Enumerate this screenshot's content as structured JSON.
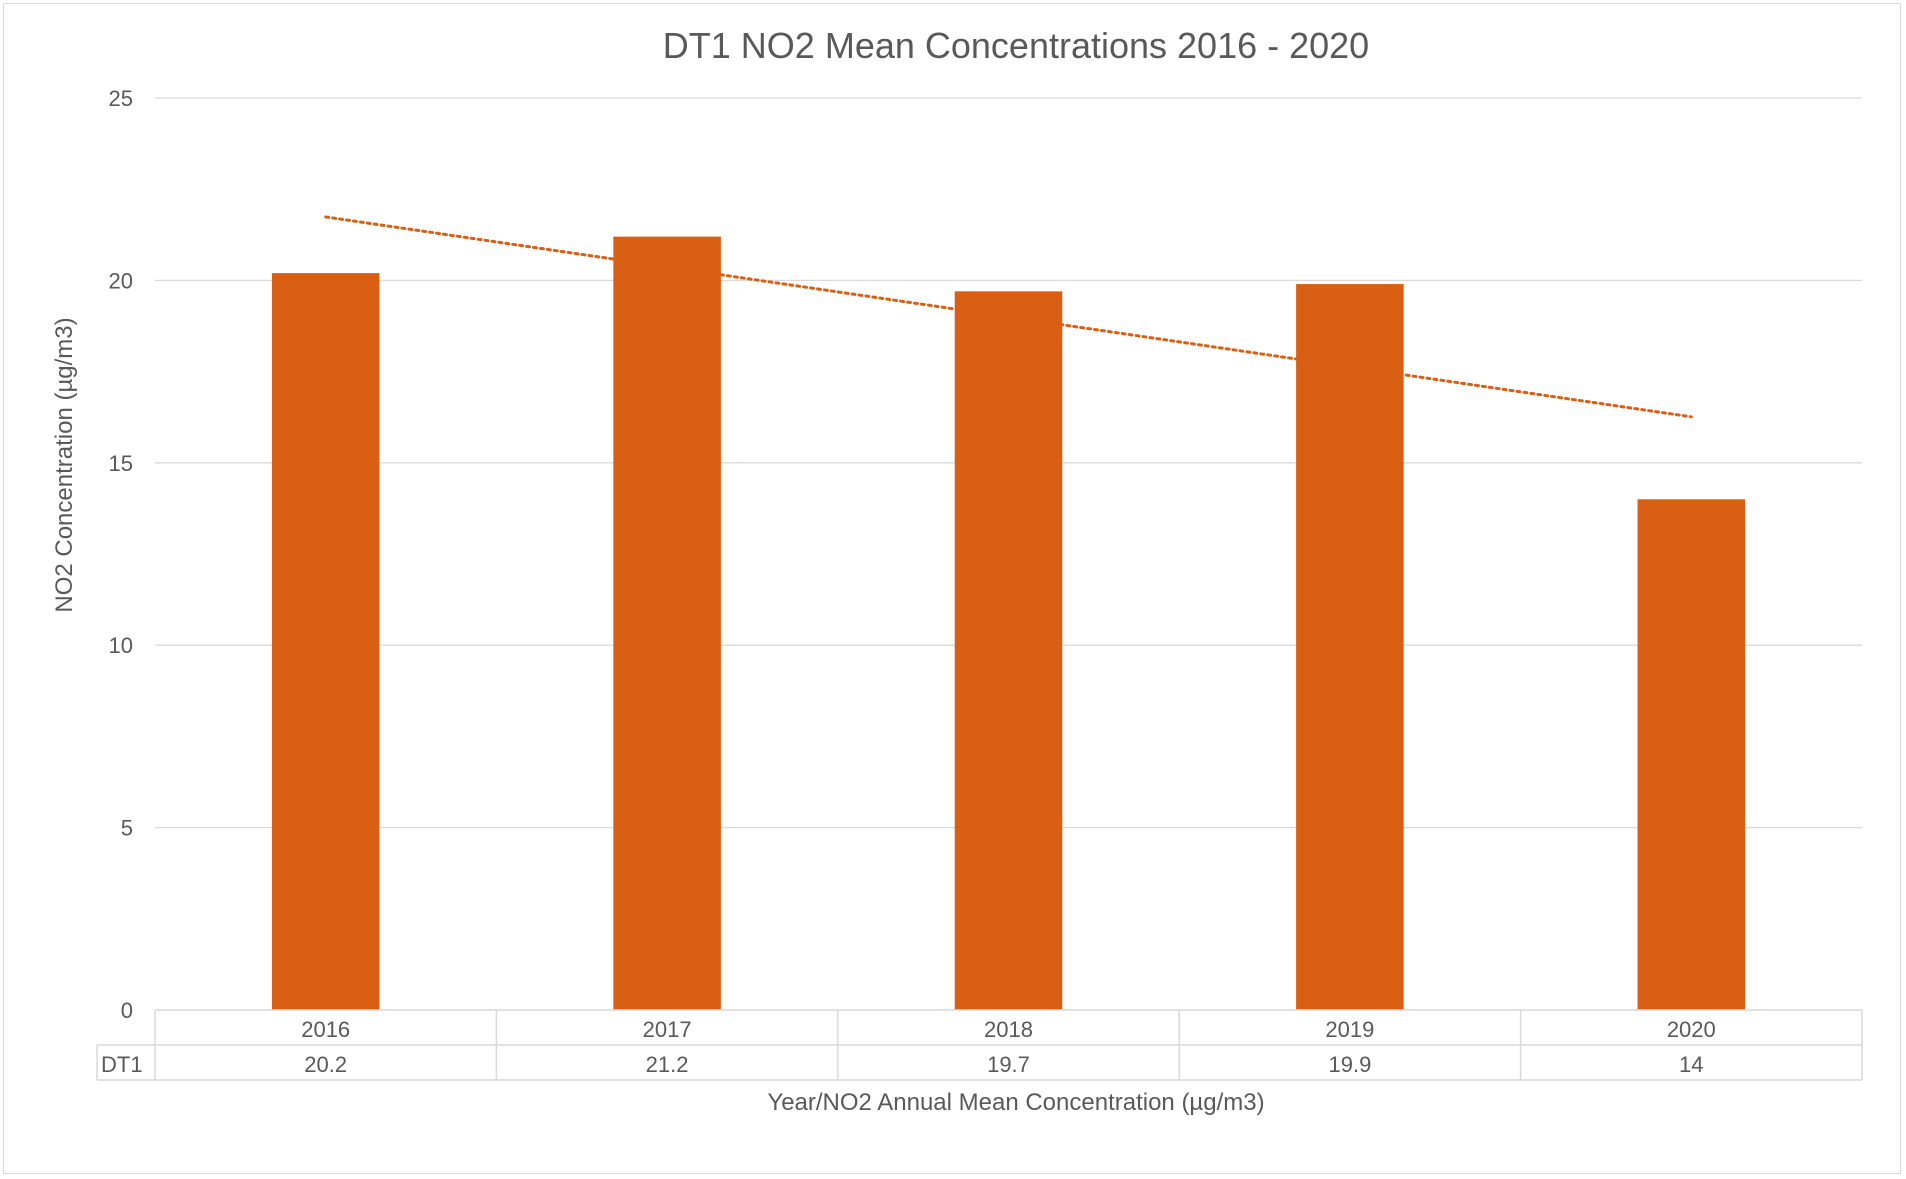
{
  "chart_data": {
    "type": "bar",
    "title": "DT1 NO2 Mean Concentrations 2016 - 2020",
    "xlabel": "Year/NO2 Annual Mean Concentration (µg/m3)",
    "ylabel": "NO2 Concentration (µg/m3)",
    "categories": [
      "2016",
      "2017",
      "2018",
      "2019",
      "2020"
    ],
    "series": [
      {
        "name": "DT1",
        "values": [
          20.2,
          21.2,
          19.7,
          19.9,
          14
        ],
        "color": "#d95f14"
      }
    ],
    "value_labels": [
      "20.2",
      "21.2",
      "19.7",
      "19.9",
      "14"
    ],
    "ylim": [
      0,
      25
    ],
    "yticks": [
      0,
      5,
      10,
      15,
      20,
      25
    ],
    "ytick_labels": [
      "0",
      "5",
      "10",
      "15",
      "20",
      "25"
    ],
    "grid": true,
    "legend": "data-table",
    "trendline": {
      "type": "linear",
      "style": "dotted",
      "color": "#d95f14"
    }
  }
}
